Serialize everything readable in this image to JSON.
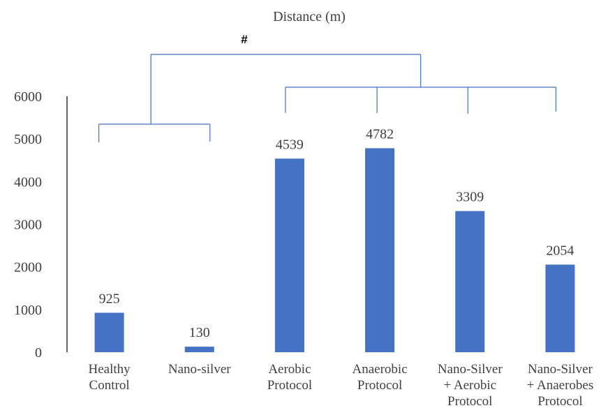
{
  "chart_data": {
    "type": "bar",
    "title": "Distance (m)",
    "categories": [
      [
        "Healthy",
        "Control"
      ],
      [
        "Nano-silver"
      ],
      [
        "Aerobic",
        "Protocol"
      ],
      [
        "Anaerobic",
        "Protocol"
      ],
      [
        "Nano-Silver",
        "+ Aerobic",
        "Protocol"
      ],
      [
        "Nano-Silver",
        "+ Anaerobes",
        "Protocol"
      ]
    ],
    "values": [
      925,
      130,
      4539,
      4782,
      3309,
      2054
    ],
    "data_labels": [
      "925",
      "130",
      "4539",
      "4782",
      "3309",
      "2054"
    ],
    "ylim": [
      0,
      6000
    ],
    "y_ticks": [
      "0",
      "1000",
      "2000",
      "3000",
      "4000",
      "5000",
      "6000"
    ],
    "grid": false,
    "legend": "none",
    "bar_color": "#4472c4",
    "bracket_color": "#4472c4",
    "annotation": "#",
    "significance_groups": [
      [
        0,
        1
      ],
      [
        2,
        3,
        4,
        5
      ]
    ]
  }
}
